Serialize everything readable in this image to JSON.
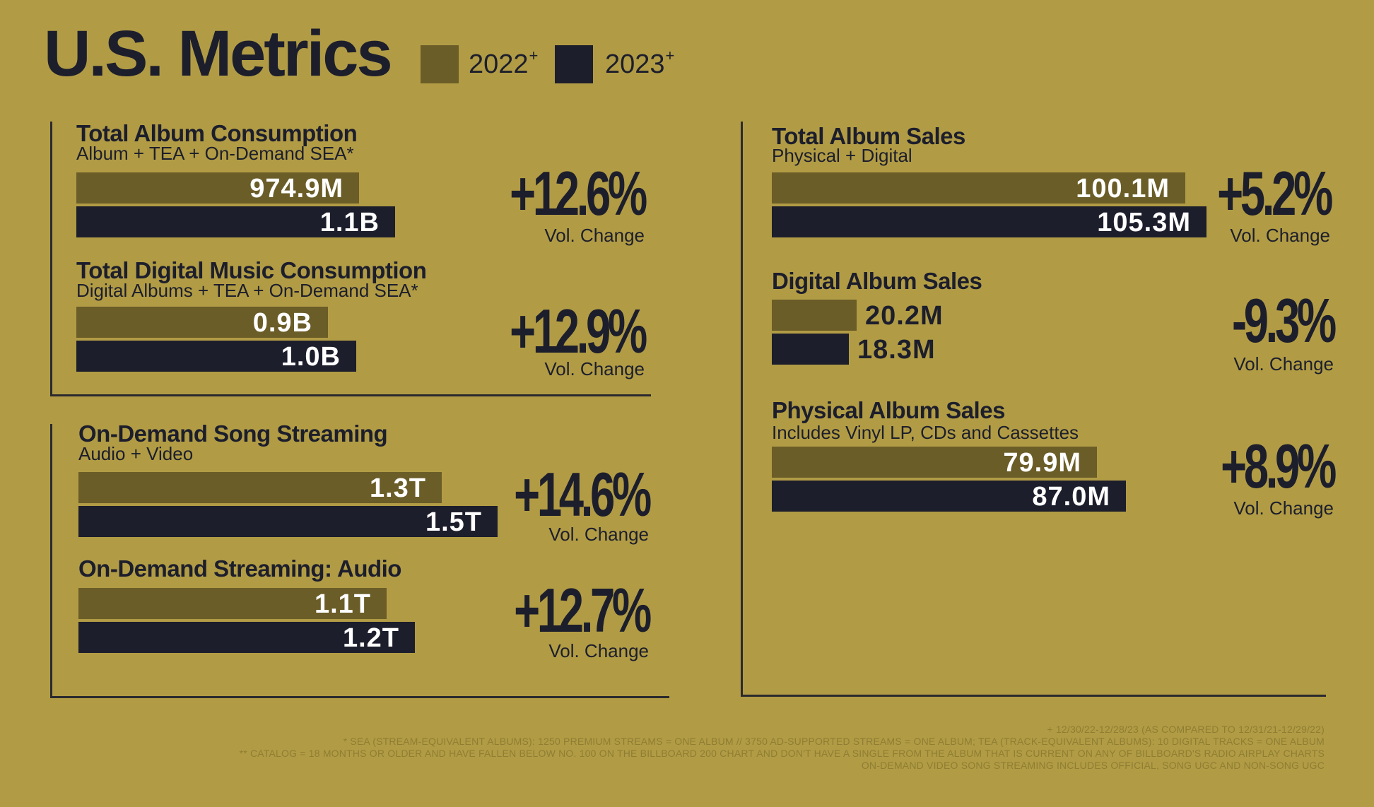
{
  "header": {
    "title": "U.S. Metrics",
    "legend": [
      {
        "label": "2022",
        "sup": "+",
        "color": "#6b5d28"
      },
      {
        "label": "2023",
        "sup": "+",
        "color": "#1d1e2c"
      }
    ]
  },
  "colors": {
    "background": "#b19c45",
    "bar_2022": "#6b5d28",
    "bar_2023": "#1d1e2c"
  },
  "chart_data": [
    {
      "type": "bar",
      "title": "Total Album Consumption",
      "subtitle": "Album + TEA + On-Demand SEA*",
      "categories": [
        "2022",
        "2023"
      ],
      "values": [
        974.9,
        1100
      ],
      "unit": "M",
      "value_labels": [
        "974.9M",
        "1.1B"
      ],
      "change": "+12.6%",
      "change_label": "Vol. Change"
    },
    {
      "type": "bar",
      "title": "Total Digital Music Consumption",
      "subtitle": "Digital Albums + TEA + On-Demand SEA*",
      "categories": [
        "2022",
        "2023"
      ],
      "values": [
        0.9,
        1.0
      ],
      "unit": "B",
      "value_labels": [
        "0.9B",
        "1.0B"
      ],
      "change": "+12.9%",
      "change_label": "Vol. Change"
    },
    {
      "type": "bar",
      "title": "On-Demand Song Streaming",
      "subtitle": "Audio + Video",
      "categories": [
        "2022",
        "2023"
      ],
      "values": [
        1.3,
        1.5
      ],
      "unit": "T",
      "value_labels": [
        "1.3T",
        "1.5T"
      ],
      "change": "+14.6%",
      "change_label": "Vol. Change"
    },
    {
      "type": "bar",
      "title": "On-Demand Streaming: Audio",
      "subtitle": "",
      "categories": [
        "2022",
        "2023"
      ],
      "values": [
        1.1,
        1.2
      ],
      "unit": "T",
      "value_labels": [
        "1.1T",
        "1.2T"
      ],
      "change": "+12.7%",
      "change_label": "Vol. Change"
    },
    {
      "type": "bar",
      "title": "Total Album Sales",
      "subtitle": "Physical + Digital",
      "categories": [
        "2022",
        "2023"
      ],
      "values": [
        100.1,
        105.3
      ],
      "unit": "M",
      "value_labels": [
        "100.1M",
        "105.3M"
      ],
      "change": "+5.2%",
      "change_label": "Vol. Change"
    },
    {
      "type": "bar",
      "title": "Digital Album Sales",
      "subtitle": "",
      "categories": [
        "2022",
        "2023"
      ],
      "values": [
        20.2,
        18.3
      ],
      "unit": "M",
      "value_labels": [
        "20.2M",
        "18.3M"
      ],
      "change": "-9.3%",
      "change_label": "Vol. Change"
    },
    {
      "type": "bar",
      "title": "Physical Album Sales",
      "subtitle": "Includes Vinyl LP, CDs and Cassettes",
      "categories": [
        "2022",
        "2023"
      ],
      "values": [
        79.9,
        87.0
      ],
      "unit": "M",
      "value_labels": [
        "79.9M",
        "87.0M"
      ],
      "change": "+8.9%",
      "change_label": "Vol. Change"
    }
  ],
  "footnotes": [
    "+ 12/30/22-12/28/23 (AS COMPARED TO 12/31/21-12/29/22)",
    "* SEA (STREAM-EQUIVALENT ALBUMS): 1250 PREMIUM STREAMS = ONE ALBUM // 3750 AD-SUPPORTED STREAMS = ONE ALBUM; TEA (TRACK-EQUIVALENT ALBUMS): 10 DIGITAL TRACKS = ONE ALBUM",
    "** CATALOG = 18 MONTHS OR OLDER AND HAVE FALLEN BELOW NO. 100 ON THE BILLBOARD 200 CHART AND DON'T HAVE A SINGLE FROM THE ALBUM THAT IS CURRENT ON ANY OF BILLBOARD'S RADIO AIRPLAY CHARTS",
    "ON-DEMAND VIDEO SONG STREAMING INCLUDES OFFICIAL, SONG UGC AND NON-SONG UGC"
  ]
}
